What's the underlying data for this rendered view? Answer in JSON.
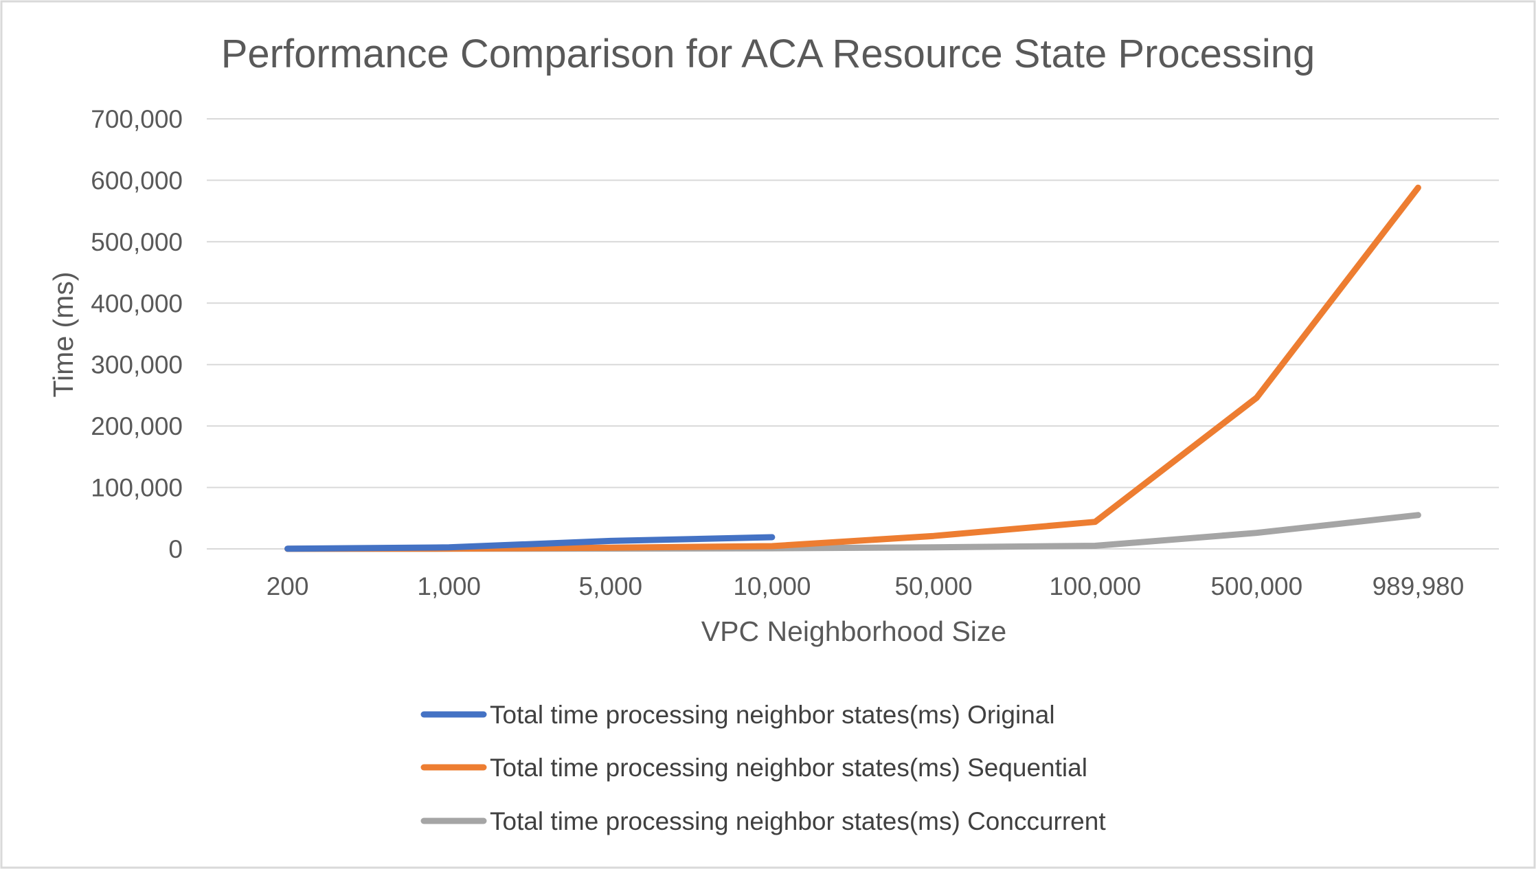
{
  "chart_data": {
    "type": "line",
    "title": "Performance Comparison for ACA Resource State Processing",
    "xlabel": "VPC Neighborhood Size",
    "ylabel": "Time (ms)",
    "categories": [
      "200",
      "1,000",
      "5,000",
      "10,000",
      "50,000",
      "100,000",
      "500,000",
      "989,980"
    ],
    "y_ticks": [
      "0",
      "100,000",
      "200,000",
      "300,000",
      "400,000",
      "500,000",
      "600,000",
      "700,000"
    ],
    "ylim": [
      0,
      700000
    ],
    "grid": "horizontal",
    "legend_position": "bottom",
    "series": [
      {
        "name": "Total time processing neighbor states(ms) Original",
        "color": "#4472C4",
        "values": [
          300,
          2500,
          13000,
          19000,
          null,
          null,
          null,
          null
        ]
      },
      {
        "name": "Total time processing neighbor states(ms) Sequential",
        "color": "#ED7D31",
        "values": [
          100,
          500,
          2000,
          4500,
          21000,
          44000,
          246000,
          588000
        ]
      },
      {
        "name": "Total time processing neighbor states(ms) Conccurrent",
        "color": "#A5A5A5",
        "values": [
          50,
          200,
          500,
          1000,
          2500,
          5000,
          26000,
          55000
        ]
      }
    ]
  }
}
